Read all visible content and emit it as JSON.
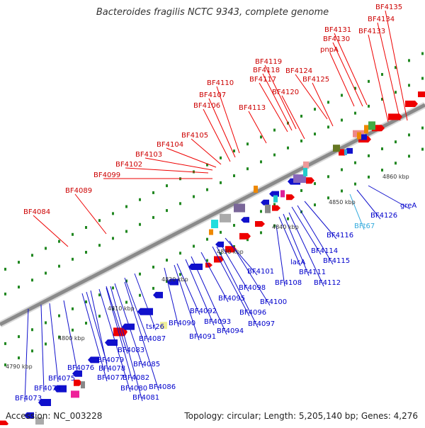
{
  "title": "Bacteroides fragilis NCTC 9343, complete genome",
  "accession": "Accession: NC_003228",
  "topology": "Topology: circular; Length: 5,205,140 bp; Genes: 4,276",
  "colors": {
    "forward": "#ee0000",
    "reverse": "#1010cc",
    "label_forward": "#cc0000",
    "label_reverse": "#0000cc",
    "label_special": "#33aadd",
    "backbone": "#999999",
    "tick": "#228822"
  },
  "scale": [
    "4790 kbp",
    "4800 kbp",
    "4810 kbp",
    "4820 kbp",
    "4830 kbp",
    "4840 kbp",
    "4850 kbp",
    "4860 kbp"
  ],
  "forward_labels": [
    "BF4135",
    "BF4134",
    "BF4133",
    "BF4131",
    "BF4130",
    "pnpA",
    "BF4119",
    "BF4118",
    "BF4117",
    "BF4124",
    "BF4125",
    "BF4120",
    "BF4110",
    "BF4107",
    "BF4106",
    "BF4113",
    "BF4105",
    "BF4104",
    "BF4103",
    "BF4102",
    "BF4099",
    "BF4089",
    "BF4084"
  ],
  "reverse_labels": [
    "greA",
    "BF4126",
    "BFt67",
    "BF4116",
    "BF4114",
    "BF4115",
    "BF4111",
    "BF4112",
    "lacA",
    "BF4108",
    "BF4101",
    "BF4098",
    "BF4100",
    "BF4096",
    "BF4097",
    "BF4095",
    "BF4094",
    "BF4093",
    "BF4092",
    "BF4090",
    "BF4091",
    "tsr26",
    "BF4087",
    "BF4083",
    "BF4085",
    "BF4086",
    "BF4079",
    "BF4078",
    "BF4082",
    "BF4077",
    "BF4080",
    "BF4081",
    "BF4076",
    "BF4075",
    "BF4074",
    "BF4073"
  ]
}
